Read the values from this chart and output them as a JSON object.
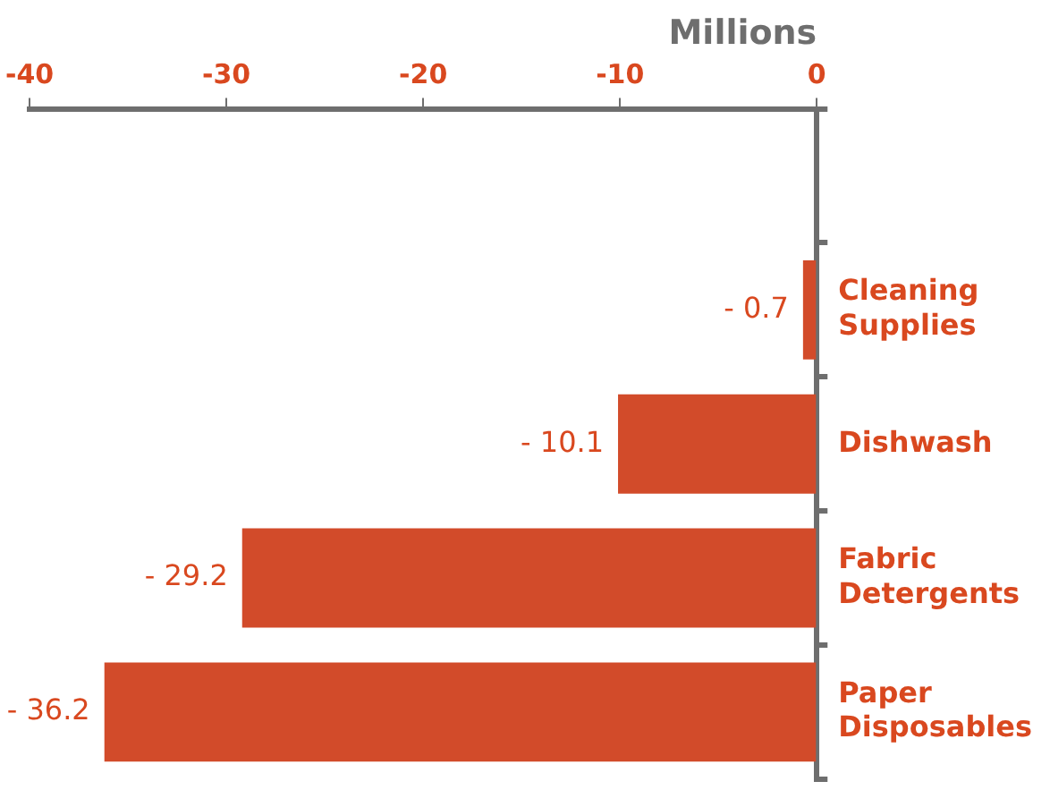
{
  "chart_data": {
    "type": "bar",
    "orientation": "horizontal",
    "xlabel": "Millions",
    "categories": [
      null,
      "Cleaning Supplies",
      "Dishwash",
      "Fabric Detergents",
      "Paper Disposables"
    ],
    "values": [
      null,
      -0.7,
      -10.1,
      -29.2,
      -36.2
    ],
    "value_labels": [
      null,
      "- 0.7",
      "- 10.1",
      "- 29.2",
      "- 36.2"
    ],
    "color": "#d24b2a",
    "xlim": [
      -40,
      0
    ],
    "xticks": [
      -40,
      -30,
      -20,
      -10,
      0
    ],
    "grid": false,
    "legend": false
  }
}
